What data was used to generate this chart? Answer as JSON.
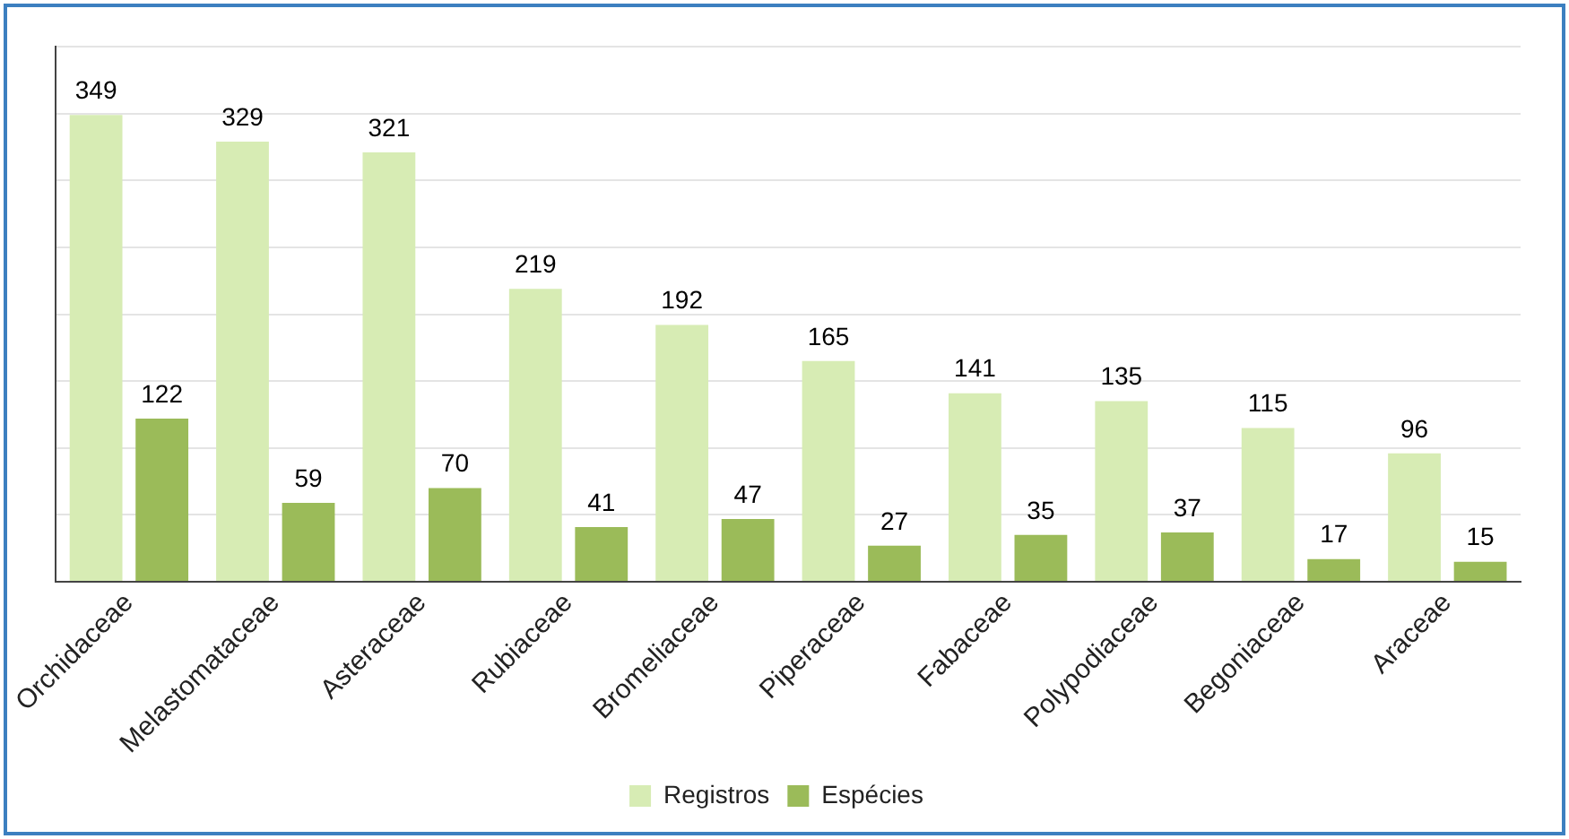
{
  "chart_data": {
    "type": "bar",
    "categories": [
      "Orchidaceae",
      "Melastomataceae",
      "Asteraceae",
      "Rubiaceae",
      "Bromeliaceae",
      "Piperaceae",
      "Fabaceae",
      "Polypodiaceae",
      "Begoniaceae",
      "Araceae"
    ],
    "series": [
      {
        "name": "Registros",
        "color": "#d7ecb4",
        "values": [
          349,
          329,
          321,
          219,
          192,
          165,
          141,
          135,
          115,
          96
        ]
      },
      {
        "name": "Espécies",
        "color": "#9bbb59",
        "values": [
          122,
          59,
          70,
          41,
          47,
          27,
          35,
          37,
          17,
          15
        ]
      }
    ],
    "ylim": [
      0,
      400
    ],
    "yticks": [
      {
        "value": 0,
        "label": null
      },
      {
        "value": 50,
        "label": null
      },
      {
        "value": 100,
        "label": null
      },
      {
        "value": 150,
        "label": null
      },
      {
        "value": 200,
        "label": null
      },
      {
        "value": 250,
        "label": null
      },
      {
        "value": 300,
        "label": null
      },
      {
        "value": 350,
        "label": null
      },
      {
        "value": 400,
        "label": null
      }
    ],
    "grid": "y",
    "legend": "bottom",
    "data_labels": true
  }
}
